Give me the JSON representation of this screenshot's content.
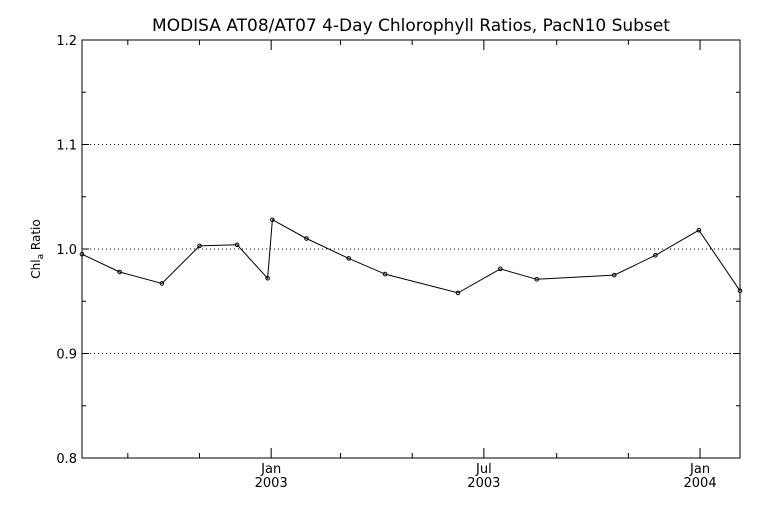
{
  "chart_data": {
    "type": "line",
    "title": "MODISA AT08/AT07 4-Day Chlorophyll Ratios, PacN10 Subset",
    "xlabel": "",
    "ylabel": {
      "main": "Chl",
      "sub": "a",
      "rest": " Ratio"
    },
    "ylim": [
      0.8,
      1.2
    ],
    "xlim": [
      "2002-07-24",
      "2004-02-04"
    ],
    "y_ticks": [
      0.8,
      0.9,
      1.0,
      1.1,
      1.2
    ],
    "y_tick_labels": [
      "0.8",
      "0.9",
      "1.0",
      "1.1",
      "1.2"
    ],
    "y_gridlines": [
      0.9,
      1.0,
      1.1
    ],
    "grid_style": "dotted horizontal",
    "x_major_ticks": [
      {
        "date": "2003-01-01",
        "label1": "Jan",
        "label2": "2003"
      },
      {
        "date": "2003-07-01",
        "label1": "Jul",
        "label2": "2003"
      },
      {
        "date": "2004-01-01",
        "label1": "Jan",
        "label2": "2004"
      }
    ],
    "x_minor_ticks": [
      "2002-09-01",
      "2002-11-01",
      "2003-03-01",
      "2003-05-01",
      "2003-09-01",
      "2003-11-01"
    ],
    "series": [
      {
        "color": "#000000",
        "points": [
          {
            "x": "2002-07-24",
            "y": 0.995
          },
          {
            "x": "2002-08-25",
            "y": 0.978
          },
          {
            "x": "2002-09-30",
            "y": 0.967
          },
          {
            "x": "2002-11-01",
            "y": 1.003
          },
          {
            "x": "2002-12-03",
            "y": 1.004
          },
          {
            "x": "2002-12-29",
            "y": 0.972
          },
          {
            "x": "2003-01-02",
            "y": 1.028
          },
          {
            "x": "2003-01-31",
            "y": 1.01
          },
          {
            "x": "2003-03-08",
            "y": 0.991
          },
          {
            "x": "2003-04-08",
            "y": 0.976
          },
          {
            "x": "2003-06-09",
            "y": 0.958
          },
          {
            "x": "2003-07-15",
            "y": 0.981
          },
          {
            "x": "2003-08-15",
            "y": 0.971
          },
          {
            "x": "2003-10-20",
            "y": 0.975
          },
          {
            "x": "2003-11-24",
            "y": 0.994
          },
          {
            "x": "2003-12-31",
            "y": 1.018
          },
          {
            "x": "2004-02-04",
            "y": 0.96
          }
        ]
      }
    ]
  }
}
